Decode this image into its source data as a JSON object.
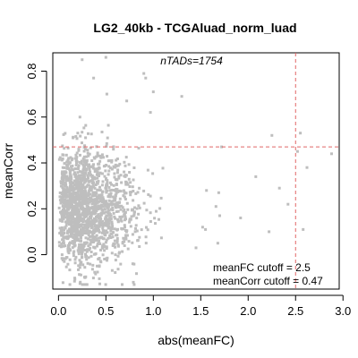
{
  "chart_data": {
    "type": "scatter",
    "title": "LG2_40kb - TCGAluad_norm_luad",
    "xlabel": "abs(meanFC)",
    "ylabel": "meanCorr",
    "xlim": [
      -0.06,
      2.96
    ],
    "ylim": [
      -0.15,
      0.88
    ],
    "x_ticks": [
      0.0,
      0.5,
      1.0,
      1.5,
      2.0,
      2.5,
      3.0
    ],
    "x_tick_labels": [
      "0.0",
      "0.5",
      "1.0",
      "1.5",
      "2.0",
      "2.5",
      "3.0"
    ],
    "y_ticks": [
      0.0,
      0.2,
      0.4,
      0.6,
      0.8
    ],
    "y_tick_labels": [
      "0.0",
      "0.2",
      "0.4",
      "0.6",
      "0.8"
    ],
    "grid": false,
    "point_color": "#bebebe",
    "cutoff_color": "#e06666",
    "annotation_top": "nTADs=1754",
    "n_points": 1754,
    "cutoffs": {
      "meanFC": 2.5,
      "meanCorr": 0.47,
      "meanFC_label": "meanFC cutoff = 2.5",
      "meanCorr_label": "meanCorr cutoff = 0.47"
    },
    "outliers": [
      [
        0.25,
        0.85
      ],
      [
        0.5,
        0.86
      ],
      [
        0.37,
        0.77
      ],
      [
        0.51,
        0.7
      ],
      [
        0.9,
        0.79
      ],
      [
        0.92,
        0.77
      ],
      [
        1.0,
        0.71
      ],
      [
        0.72,
        0.67
      ],
      [
        1.3,
        0.69
      ],
      [
        0.97,
        0.62
      ],
      [
        1.72,
        0.47
      ],
      [
        2.25,
        0.52
      ],
      [
        2.55,
        0.53
      ],
      [
        2.52,
        0.45
      ],
      [
        2.88,
        0.44
      ],
      [
        2.62,
        0.38
      ],
      [
        1.56,
        0.28
      ],
      [
        1.69,
        0.27
      ],
      [
        1.66,
        0.21
      ],
      [
        1.7,
        0.17
      ],
      [
        1.68,
        0.05
      ],
      [
        2.22,
        0.1
      ],
      [
        2.58,
        0.11
      ],
      [
        2.42,
        0.22
      ],
      [
        1.55,
        0.11
      ],
      [
        1.45,
        0.03
      ],
      [
        0.28,
        -0.1
      ],
      [
        0.23,
        -0.12
      ],
      [
        1.52,
        0.12
      ],
      [
        2.08,
        0.34
      ],
      [
        2.33,
        0.29
      ],
      [
        1.92,
        0.16
      ]
    ]
  }
}
